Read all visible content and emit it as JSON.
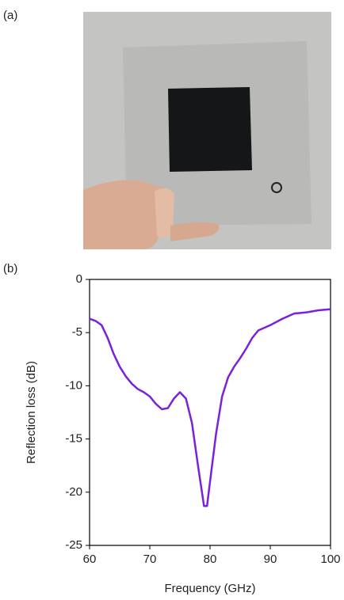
{
  "panel_labels": [
    "(a)",
    "(b)"
  ],
  "chart_data": {
    "type": "line",
    "xlabel": "Frequency (GHz)",
    "ylabel": "Reflection loss (dB)",
    "x": [
      60,
      61,
      62,
      63,
      64,
      65,
      66,
      67,
      68,
      69,
      70,
      71,
      72,
      73,
      74,
      75,
      76,
      77,
      78,
      79,
      79.5,
      80,
      81,
      82,
      83,
      84,
      85,
      86,
      87,
      88,
      90,
      92,
      94,
      96,
      98,
      100
    ],
    "series": [
      {
        "color": "#7a22d6",
        "values": [
          -3.7,
          -3.9,
          -4.3,
          -5.5,
          -7.0,
          -8.2,
          -9.1,
          -9.8,
          -10.3,
          -10.6,
          -11.0,
          -11.7,
          -12.2,
          -12.1,
          -11.2,
          -10.6,
          -11.2,
          -13.5,
          -17.5,
          -21.3,
          -21.3,
          -19.0,
          -14.5,
          -11.0,
          -9.2,
          -8.2,
          -7.4,
          -6.5,
          -5.5,
          -4.8,
          -4.3,
          -3.7,
          -3.2,
          -3.1,
          -2.9,
          -2.8
        ]
      }
    ],
    "xlim": [
      60,
      100
    ],
    "xticks": [
      60,
      70,
      80,
      90,
      100
    ],
    "ylim": [
      -25,
      0
    ],
    "yticks": [
      0,
      -5,
      -10,
      -15,
      -20,
      -25
    ]
  }
}
